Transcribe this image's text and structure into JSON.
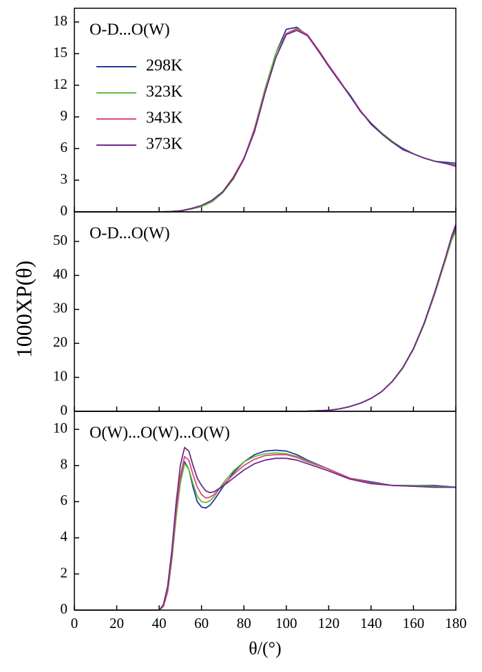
{
  "chart_data": [
    {
      "type": "line",
      "title": "O-D...O(W)",
      "legend": true,
      "xlim": [
        0,
        180
      ],
      "ylim": [
        0,
        19.3
      ],
      "yticks": [
        0,
        3,
        6,
        9,
        12,
        15,
        18
      ],
      "x": [
        0,
        10,
        20,
        30,
        40,
        45,
        50,
        55,
        60,
        65,
        70,
        75,
        80,
        85,
        90,
        95,
        100,
        105,
        110,
        115,
        120,
        125,
        130,
        135,
        140,
        145,
        150,
        155,
        160,
        165,
        170,
        175,
        180
      ],
      "series": [
        {
          "name": "298K",
          "color": "#1f3a93",
          "values": [
            0,
            0,
            0,
            0,
            0,
            0.02,
            0.1,
            0.3,
            0.6,
            1.1,
            1.9,
            3.2,
            5.0,
            7.9,
            11.6,
            15.0,
            17.3,
            17.5,
            16.7,
            15.3,
            13.8,
            12.4,
            11.1,
            9.6,
            8.3,
            7.4,
            6.6,
            5.9,
            5.5,
            5.1,
            4.8,
            4.7,
            4.6
          ]
        },
        {
          "name": "323K",
          "color": "#5cbf3a",
          "values": [
            0,
            0,
            0,
            0,
            0,
            0.02,
            0.08,
            0.25,
            0.5,
            0.95,
            1.8,
            3.1,
            5.0,
            7.9,
            11.7,
            15.0,
            16.9,
            17.3,
            16.7,
            15.4,
            13.9,
            12.4,
            11.0,
            9.6,
            8.4,
            7.5,
            6.7,
            6.0,
            5.5,
            5.1,
            4.8,
            4.6,
            4.4
          ]
        },
        {
          "name": "343K",
          "color": "#e0457b",
          "values": [
            0,
            0,
            0,
            0,
            0,
            0.02,
            0.1,
            0.3,
            0.6,
            1.1,
            1.9,
            3.3,
            5.1,
            7.8,
            11.4,
            14.6,
            16.9,
            17.4,
            16.8,
            15.4,
            13.9,
            12.5,
            11.0,
            9.6,
            8.4,
            7.4,
            6.6,
            6.0,
            5.5,
            5.1,
            4.8,
            4.6,
            4.3
          ]
        },
        {
          "name": "373K",
          "color": "#6a2a8a",
          "values": [
            0,
            0,
            0,
            0,
            0,
            0.02,
            0.1,
            0.3,
            0.6,
            1.1,
            1.9,
            3.2,
            5.0,
            7.6,
            11.3,
            14.6,
            16.8,
            17.2,
            16.7,
            15.3,
            13.8,
            12.4,
            11.0,
            9.5,
            8.4,
            7.4,
            6.6,
            6.0,
            5.5,
            5.1,
            4.8,
            4.6,
            4.4
          ]
        }
      ]
    },
    {
      "type": "line",
      "title": "O-D...O(W)",
      "ylabel": "1000XP(θ)",
      "xlim": [
        0,
        180
      ],
      "ylim": [
        0,
        58.7
      ],
      "yticks": [
        0,
        10,
        20,
        30,
        40,
        50
      ],
      "x": [
        0,
        20,
        40,
        60,
        80,
        100,
        110,
        120,
        125,
        130,
        135,
        140,
        145,
        150,
        155,
        160,
        165,
        170,
        175,
        178,
        180
      ],
      "series": [
        {
          "color": "#1f3a93",
          "values": [
            0,
            0,
            0,
            0,
            0,
            0,
            0.05,
            0.3,
            0.7,
            1.4,
            2.4,
            3.8,
            5.8,
            8.8,
            12.8,
            18.3,
            25.6,
            34.5,
            44.5,
            50.8,
            54.0
          ]
        },
        {
          "color": "#5cbf3a",
          "values": [
            0,
            0,
            0,
            0,
            0,
            0,
            0.05,
            0.3,
            0.7,
            1.4,
            2.4,
            3.8,
            5.8,
            8.7,
            12.7,
            18.2,
            25.5,
            34.4,
            44.2,
            50.3,
            53.0
          ]
        },
        {
          "color": "#e0457b",
          "values": [
            0,
            0,
            0,
            0,
            0,
            0,
            0.05,
            0.3,
            0.7,
            1.4,
            2.4,
            3.8,
            5.8,
            8.8,
            12.9,
            18.4,
            25.8,
            34.8,
            44.8,
            51.2,
            54.5
          ]
        },
        {
          "color": "#6a2a8a",
          "values": [
            0,
            0,
            0,
            0,
            0,
            0,
            0.05,
            0.3,
            0.7,
            1.4,
            2.4,
            3.8,
            5.8,
            8.8,
            12.9,
            18.5,
            25.9,
            35.0,
            45.0,
            51.5,
            55.0
          ]
        }
      ]
    },
    {
      "type": "line",
      "title": "O(W)...O(W)...O(W)",
      "xlabel": "θ/(°)",
      "xlim": [
        0,
        180
      ],
      "ylim": [
        0,
        11
      ],
      "yticks": [
        0,
        2,
        4,
        6,
        8,
        10
      ],
      "xticks": [
        0,
        20,
        40,
        60,
        80,
        100,
        120,
        140,
        160,
        180
      ],
      "x": [
        0,
        10,
        20,
        30,
        40,
        42,
        44,
        46,
        48,
        50,
        52,
        54,
        56,
        58,
        60,
        62,
        64,
        66,
        70,
        75,
        80,
        85,
        90,
        95,
        100,
        105,
        110,
        120,
        130,
        140,
        150,
        160,
        170,
        180
      ],
      "series": [
        {
          "color": "#1f3a93",
          "values": [
            0,
            0,
            0,
            0,
            0,
            0.2,
            1.0,
            2.8,
            5.2,
            7.2,
            8.2,
            7.8,
            6.8,
            6.0,
            5.7,
            5.65,
            5.8,
            6.1,
            6.8,
            7.6,
            8.2,
            8.6,
            8.8,
            8.85,
            8.8,
            8.6,
            8.3,
            7.8,
            7.3,
            7.1,
            6.9,
            6.9,
            6.9,
            6.8
          ]
        },
        {
          "color": "#5cbf3a",
          "values": [
            0,
            0,
            0,
            0,
            0,
            0.2,
            1.0,
            2.8,
            5.1,
            7.0,
            8.1,
            7.8,
            7.0,
            6.3,
            6.0,
            5.95,
            6.05,
            6.3,
            7.0,
            7.7,
            8.2,
            8.5,
            8.65,
            8.7,
            8.65,
            8.5,
            8.25,
            7.8,
            7.3,
            7.05,
            6.9,
            6.9,
            6.85,
            6.8
          ]
        },
        {
          "color": "#e0457b",
          "values": [
            0,
            0,
            0,
            0,
            0,
            0.2,
            1.1,
            3.0,
            5.4,
            7.4,
            8.5,
            8.3,
            7.5,
            6.8,
            6.4,
            6.2,
            6.25,
            6.4,
            6.9,
            7.5,
            8.0,
            8.35,
            8.55,
            8.6,
            8.6,
            8.45,
            8.2,
            7.8,
            7.3,
            7.05,
            6.9,
            6.85,
            6.8,
            6.8
          ]
        },
        {
          "color": "#6a2a8a",
          "values": [
            0,
            0,
            0,
            0,
            0,
            0.3,
            1.3,
            3.3,
            5.9,
            8.0,
            9.0,
            8.8,
            8.0,
            7.3,
            6.9,
            6.6,
            6.5,
            6.55,
            6.85,
            7.3,
            7.75,
            8.1,
            8.3,
            8.4,
            8.4,
            8.3,
            8.1,
            7.7,
            7.25,
            7.0,
            6.9,
            6.85,
            6.8,
            6.8
          ]
        }
      ]
    }
  ]
}
